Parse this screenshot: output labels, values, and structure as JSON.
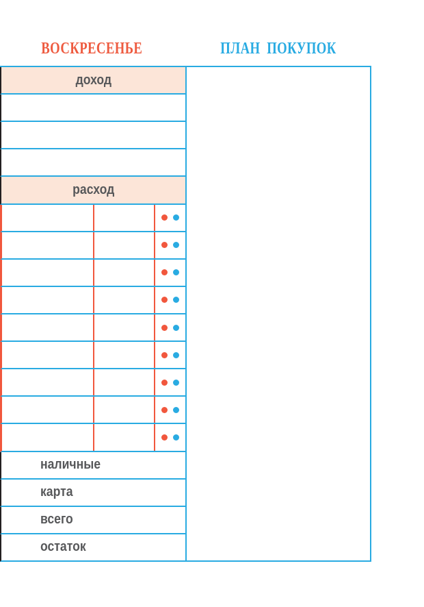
{
  "header": {
    "day_title": "ВОСКРЕСЕНЬЕ",
    "plan_title": "ПЛАН ПОКУПОК"
  },
  "budget_table": {
    "income_header": "доход",
    "income_row_count": 3,
    "income_rows": [
      "",
      "",
      ""
    ],
    "expense_header": "расход",
    "expense_row_count": 9,
    "expense_rows": [
      {
        "category": "",
        "amount": ""
      },
      {
        "category": "",
        "amount": ""
      },
      {
        "category": "",
        "amount": ""
      },
      {
        "category": "",
        "amount": ""
      },
      {
        "category": "",
        "amount": ""
      },
      {
        "category": "",
        "amount": ""
      },
      {
        "category": "",
        "amount": ""
      },
      {
        "category": "",
        "amount": ""
      },
      {
        "category": "",
        "amount": ""
      }
    ],
    "summary_rows": [
      {
        "label": "наличные"
      },
      {
        "label": "карта"
      },
      {
        "label": "всего"
      },
      {
        "label": "остаток"
      }
    ]
  },
  "icons": {
    "red_dot": "cash-marker-dot",
    "blue_dot": "card-marker-dot"
  },
  "plan_box": {
    "content": ""
  },
  "colors": {
    "accent_cyan": "#29abe2",
    "accent_red": "#f1573d",
    "title_red": "#ee5b40",
    "header_fill": "#fce5d8",
    "dark_border": "#231f20",
    "label_text": "#57585a"
  }
}
